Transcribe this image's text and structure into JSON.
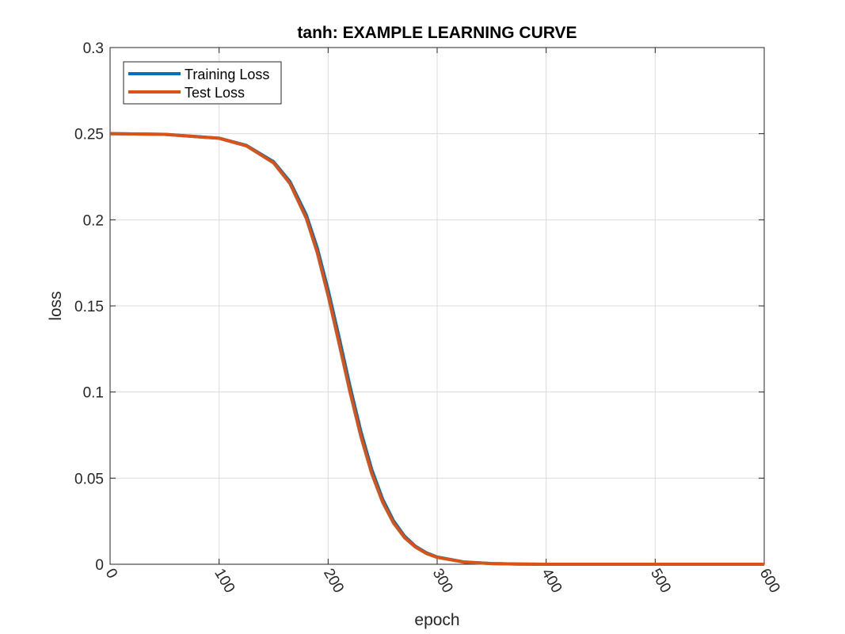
{
  "chart_data": {
    "type": "line",
    "title": "tanh: EXAMPLE LEARNING CURVE",
    "xlabel": "epoch",
    "ylabel": "loss",
    "xlim": [
      0,
      600
    ],
    "ylim": [
      0,
      0.3
    ],
    "xticks": [
      0,
      100,
      200,
      300,
      400,
      500,
      600
    ],
    "xtick_labels": [
      "0",
      "100",
      "200",
      "300",
      "400",
      "500",
      "600"
    ],
    "yticks": [
      0,
      0.05,
      0.1,
      0.15,
      0.2,
      0.25,
      0.3
    ],
    "ytick_labels": [
      "0",
      "0.05",
      "0.1",
      "0.15",
      "0.2",
      "0.25",
      "0.3"
    ],
    "grid": true,
    "legend_position": "top-left",
    "x": [
      0,
      50,
      100,
      125,
      150,
      165,
      180,
      190,
      200,
      210,
      220,
      230,
      240,
      250,
      260,
      270,
      280,
      290,
      300,
      325,
      350,
      375,
      400,
      450,
      500,
      550,
      600
    ],
    "series": [
      {
        "name": "Training Loss",
        "color": "#0072BD",
        "values": [
          0.25,
          0.2496,
          0.2474,
          0.2432,
          0.2337,
          0.2222,
          0.2028,
          0.1837,
          0.1593,
          0.1319,
          0.1035,
          0.0772,
          0.055,
          0.0378,
          0.0252,
          0.0164,
          0.0105,
          0.0067,
          0.0042,
          0.0013,
          0.0004,
          0.0001,
          0.0,
          0.0,
          0.0,
          0.0,
          0.0
        ]
      },
      {
        "name": "Test Loss",
        "color": "#D95319",
        "values": [
          0.25,
          0.2496,
          0.2473,
          0.2429,
          0.233,
          0.221,
          0.2008,
          0.181,
          0.156,
          0.1283,
          0.1001,
          0.0743,
          0.0526,
          0.036,
          0.0239,
          0.0155,
          0.01,
          0.0063,
          0.004,
          0.0012,
          0.0004,
          0.0001,
          0.0,
          0.0,
          0.0,
          0.0,
          0.0
        ]
      }
    ]
  }
}
